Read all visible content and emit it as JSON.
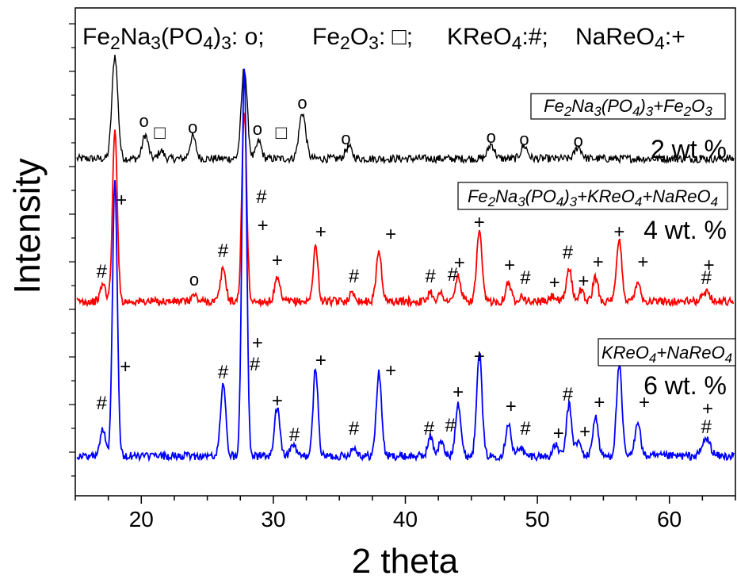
{
  "chart_data": {
    "type": "line",
    "xlabel": "2 theta",
    "ylabel": "Intensity",
    "xlim": [
      15,
      65
    ],
    "x_ticks": [
      20,
      30,
      40,
      50,
      60
    ],
    "y_ticks_labeled": false,
    "grid": false,
    "key": {
      "items": [
        {
          "formula": [
            [
              "Fe",
              ""
            ],
            [
              "2",
              "sub"
            ],
            [
              "Na",
              ""
            ],
            [
              "3",
              "sub"
            ],
            [
              "(PO",
              ""
            ],
            [
              "4",
              "sub"
            ],
            [
              ")",
              ""
            ],
            [
              "3",
              "sub"
            ],
            [
              ": ",
              ""
            ]
          ],
          "symbol": "o;"
        },
        {
          "formula": [
            [
              "Fe",
              ""
            ],
            [
              "2",
              "sub"
            ],
            [
              "O",
              ""
            ],
            [
              "3",
              "sub"
            ],
            [
              ": ",
              ""
            ]
          ],
          "symbol": "□;"
        },
        {
          "formula": [
            [
              "KReO",
              ""
            ],
            [
              "4",
              "sub"
            ],
            [
              ":",
              ""
            ]
          ],
          "symbol": "#;"
        },
        {
          "formula": [
            [
              "NaReO",
              ""
            ],
            [
              "4",
              "sub"
            ],
            [
              ":",
              ""
            ]
          ],
          "symbol": "+"
        }
      ]
    },
    "series": [
      {
        "id": "s2",
        "color": "#000000",
        "label": [
          [
            "Fe",
            ""
          ],
          [
            "2",
            "sub"
          ],
          [
            "Na",
            ""
          ],
          [
            "3",
            "sub"
          ],
          [
            "(PO",
            ""
          ],
          [
            "4",
            "sub"
          ],
          [
            ")",
            ""
          ],
          [
            "3",
            "sub"
          ],
          [
            "+Fe",
            ""
          ],
          [
            "2",
            "sub"
          ],
          [
            "O",
            ""
          ],
          [
            "3",
            "sub"
          ]
        ],
        "loading": "2 wt.%",
        "baseline": 200,
        "peaks": [
          [
            18.0,
            130,
            0.22
          ],
          [
            20.3,
            30,
            0.22
          ],
          [
            21.5,
            10,
            0.2
          ],
          [
            23.9,
            28,
            0.22
          ],
          [
            27.8,
            115,
            0.22
          ],
          [
            28.9,
            22,
            0.2
          ],
          [
            32.2,
            58,
            0.25
          ],
          [
            35.7,
            15,
            0.25
          ],
          [
            46.5,
            18,
            0.25
          ],
          [
            49.0,
            16,
            0.25
          ],
          [
            53.1,
            15,
            0.25
          ]
        ],
        "marks": [
          [
            20.2,
            "o",
            160
          ],
          [
            21.4,
            "□",
            175
          ],
          [
            23.9,
            "o",
            168
          ],
          [
            28.8,
            "o",
            170
          ],
          [
            30.6,
            "□",
            175
          ],
          [
            32.2,
            "o",
            137
          ],
          [
            35.5,
            "o",
            182
          ],
          [
            46.5,
            "o",
            180
          ],
          [
            49.0,
            "o",
            183
          ],
          [
            53.1,
            "o",
            185
          ]
        ]
      },
      {
        "id": "s4",
        "color": "#ff0000",
        "label": [
          [
            "Fe",
            ""
          ],
          [
            "2",
            "sub"
          ],
          [
            "Na",
            ""
          ],
          [
            "3",
            "sub"
          ],
          [
            "(PO",
            ""
          ],
          [
            "4",
            "sub"
          ],
          [
            ")",
            ""
          ],
          [
            "3",
            "sub"
          ],
          [
            "+KReO",
            ""
          ],
          [
            "4",
            "sub"
          ],
          [
            "+NaReO",
            ""
          ],
          [
            "4",
            "sub"
          ]
        ],
        "loading": "4 wt. %",
        "baseline": 380,
        "peaks": [
          [
            17.1,
            22,
            0.2
          ],
          [
            18.0,
            215,
            0.18
          ],
          [
            24.0,
            8,
            0.2
          ],
          [
            26.2,
            42,
            0.2
          ],
          [
            27.8,
            240,
            0.18
          ],
          [
            30.3,
            28,
            0.2
          ],
          [
            33.2,
            70,
            0.18
          ],
          [
            36.0,
            10,
            0.25
          ],
          [
            38.0,
            64,
            0.2
          ],
          [
            41.9,
            12,
            0.2
          ],
          [
            42.7,
            10,
            0.2
          ],
          [
            44.0,
            32,
            0.2
          ],
          [
            45.6,
            87,
            0.2
          ],
          [
            47.8,
            24,
            0.2
          ],
          [
            48.8,
            8,
            0.2
          ],
          [
            51.2,
            7,
            0.2
          ],
          [
            52.4,
            42,
            0.2
          ],
          [
            53.3,
            14,
            0.2
          ],
          [
            54.4,
            30,
            0.2
          ],
          [
            56.2,
            77,
            0.2
          ],
          [
            57.6,
            26,
            0.2
          ],
          [
            62.8,
            12,
            0.3
          ]
        ],
        "marks": [
          [
            17.0,
            "#",
            350
          ],
          [
            18.5,
            "+",
            260
          ],
          [
            24.0,
            "o",
            360
          ],
          [
            26.2,
            "#",
            324
          ],
          [
            29.1,
            "#",
            256
          ],
          [
            29.2,
            "+",
            292
          ],
          [
            30.3,
            "+",
            336
          ],
          [
            33.6,
            "+",
            300
          ],
          [
            36.1,
            "#",
            356
          ],
          [
            38.9,
            "+",
            303
          ],
          [
            41.9,
            "#",
            356
          ],
          [
            43.6,
            "#",
            354
          ],
          [
            44.1,
            "+",
            339
          ],
          [
            45.6,
            "+",
            288
          ],
          [
            47.9,
            "+",
            342
          ],
          [
            49.1,
            "#",
            358
          ],
          [
            51.3,
            "+",
            364
          ],
          [
            52.3,
            "#",
            326
          ],
          [
            53.5,
            "+",
            362
          ],
          [
            54.6,
            "+",
            338
          ],
          [
            56.2,
            "+",
            300
          ],
          [
            58.0,
            "+",
            338
          ],
          [
            62.8,
            "#",
            358
          ],
          [
            63.0,
            "+",
            342
          ]
        ]
      },
      {
        "id": "s6",
        "color": "#0000ff",
        "label": [
          [
            "KReO",
            ""
          ],
          [
            "4",
            "sub"
          ],
          [
            "+NaReO",
            ""
          ],
          [
            "4",
            "sub"
          ]
        ],
        "loading": "6 wt. %",
        "baseline": 575,
        "peaks": [
          [
            17.1,
            35,
            0.2
          ],
          [
            18.0,
            350,
            0.18
          ],
          [
            26.2,
            90,
            0.2
          ],
          [
            27.8,
            490,
            0.18
          ],
          [
            30.3,
            62,
            0.2
          ],
          [
            31.5,
            15,
            0.2
          ],
          [
            33.2,
            113,
            0.18
          ],
          [
            36.1,
            10,
            0.25
          ],
          [
            38.0,
            105,
            0.2
          ],
          [
            41.9,
            24,
            0.2
          ],
          [
            42.7,
            18,
            0.2
          ],
          [
            44.0,
            68,
            0.2
          ],
          [
            45.6,
            133,
            0.2
          ],
          [
            47.8,
            42,
            0.2
          ],
          [
            48.7,
            12,
            0.2
          ],
          [
            51.4,
            14,
            0.2
          ],
          [
            52.4,
            65,
            0.2
          ],
          [
            53.1,
            18,
            0.2
          ],
          [
            54.4,
            50,
            0.2
          ],
          [
            56.2,
            115,
            0.2
          ],
          [
            57.6,
            45,
            0.2
          ],
          [
            62.8,
            22,
            0.3
          ]
        ],
        "marks": [
          [
            17.0,
            "#",
            516
          ],
          [
            18.8,
            "+",
            470
          ],
          [
            26.2,
            "#",
            477
          ],
          [
            28.6,
            "#",
            467
          ],
          [
            28.8,
            "+",
            440
          ],
          [
            30.3,
            "+",
            513
          ],
          [
            31.6,
            "#",
            556
          ],
          [
            33.6,
            "+",
            462
          ],
          [
            36.1,
            "#",
            548
          ],
          [
            38.9,
            "+",
            475
          ],
          [
            41.8,
            "#",
            548
          ],
          [
            43.4,
            "#",
            544
          ],
          [
            44.0,
            "+",
            502
          ],
          [
            45.6,
            "+",
            457
          ],
          [
            48.0,
            "+",
            520
          ],
          [
            49.1,
            "#",
            548
          ],
          [
            51.6,
            "+",
            554
          ],
          [
            52.3,
            "#",
            505
          ],
          [
            53.6,
            "+",
            552
          ],
          [
            54.7,
            "+",
            515
          ],
          [
            56.2,
            "+",
            449
          ],
          [
            58.1,
            "+",
            515
          ],
          [
            62.8,
            "#",
            546
          ],
          [
            62.9,
            "+",
            523
          ]
        ]
      }
    ]
  }
}
